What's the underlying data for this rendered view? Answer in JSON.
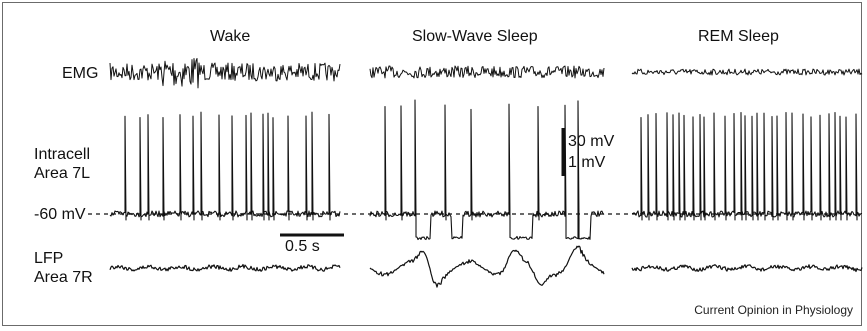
{
  "panels": [
    "Wake",
    "Slow-Wave Sleep",
    "REM Sleep"
  ],
  "row_labels": {
    "emg": "EMG",
    "intracell_line1": "Intracell",
    "intracell_line2": "Area 7L",
    "baseline": "-60 mV",
    "lfp_line1": "LFP",
    "lfp_line2": "Area 7R"
  },
  "scale_bars": {
    "voltage_intracell": "30 mV",
    "voltage_lfp": "1 mV",
    "time": "0.5 s"
  },
  "credit": "Current Opinion in Physiology",
  "colors": {
    "trace": "#111111",
    "frame": "#6b6b6b",
    "background": "#ffffff"
  }
}
